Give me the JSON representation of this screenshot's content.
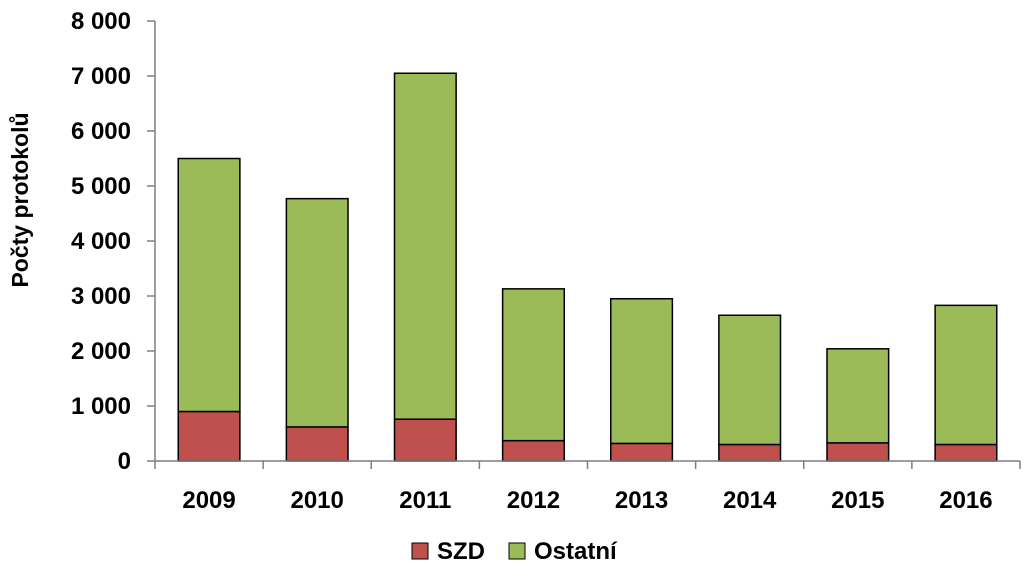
{
  "chart_data": {
    "type": "bar",
    "stacked": true,
    "categories": [
      "2009",
      "2010",
      "2011",
      "2012",
      "2013",
      "2014",
      "2015",
      "2016"
    ],
    "series": [
      {
        "name": "SZD",
        "color": "#c0504d",
        "values": [
          900,
          620,
          760,
          370,
          320,
          300,
          330,
          300
        ]
      },
      {
        "name": "Ostatní",
        "color": "#9bbb59",
        "values": [
          4600,
          4150,
          6290,
          2760,
          2630,
          2350,
          1710,
          2530
        ]
      }
    ],
    "ylabel": "Počty protokolů",
    "ylim": [
      0,
      8000
    ],
    "yticks": [
      0,
      1000,
      2000,
      3000,
      4000,
      5000,
      6000,
      7000,
      8000
    ],
    "ytick_labels": [
      "0",
      "1 000",
      "2 000",
      "3 000",
      "4 000",
      "5 000",
      "6 000",
      "7 000",
      "8 000"
    ],
    "grid": false,
    "legend_position": "bottom"
  }
}
